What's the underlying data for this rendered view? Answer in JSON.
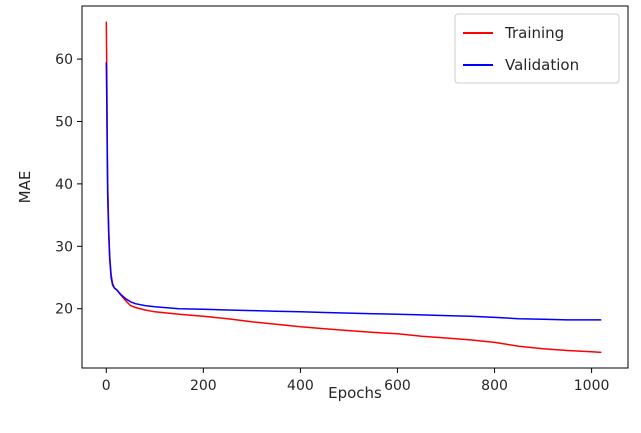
{
  "chart_data": {
    "type": "line",
    "title": "",
    "xlabel": "Epochs",
    "ylabel": "MAE",
    "xlim": [
      -50,
      1075
    ],
    "ylim": [
      10.5,
      68.5
    ],
    "xticks": [
      0,
      200,
      400,
      600,
      800,
      1000
    ],
    "yticks": [
      20,
      30,
      40,
      50,
      60
    ],
    "grid": false,
    "legend_position": "top-right",
    "series": [
      {
        "name": "Training",
        "color": "#ff0000",
        "x": [
          0,
          1,
          2,
          3,
          5,
          7,
          10,
          13,
          17,
          22,
          30,
          40,
          50,
          60,
          80,
          100,
          150,
          200,
          250,
          300,
          350,
          400,
          450,
          500,
          550,
          600,
          650,
          700,
          750,
          800,
          850,
          900,
          950,
          1000,
          1020
        ],
        "y": [
          66.0,
          58.0,
          48.0,
          40.0,
          33.0,
          28.5,
          25.5,
          24.0,
          23.3,
          23.0,
          22.2,
          21.3,
          20.5,
          20.2,
          19.8,
          19.5,
          19.1,
          18.8,
          18.4,
          17.9,
          17.5,
          17.1,
          16.8,
          16.5,
          16.2,
          16.0,
          15.6,
          15.3,
          15.0,
          14.6,
          14.0,
          13.6,
          13.3,
          13.1,
          13.0
        ]
      },
      {
        "name": "Validation",
        "color": "#0000ff",
        "x": [
          0,
          1,
          2,
          3,
          5,
          7,
          10,
          13,
          17,
          22,
          30,
          40,
          50,
          60,
          80,
          100,
          150,
          200,
          250,
          300,
          350,
          400,
          450,
          500,
          550,
          600,
          650,
          700,
          750,
          800,
          850,
          900,
          950,
          1000,
          1020
        ],
        "y": [
          59.5,
          53.0,
          45.0,
          38.0,
          32.0,
          28.0,
          25.0,
          23.8,
          23.3,
          23.0,
          22.3,
          21.6,
          21.1,
          20.8,
          20.5,
          20.3,
          20.0,
          19.9,
          19.8,
          19.7,
          19.6,
          19.5,
          19.4,
          19.3,
          19.2,
          19.1,
          19.0,
          18.9,
          18.8,
          18.6,
          18.4,
          18.3,
          18.2,
          18.2,
          18.2
        ]
      }
    ]
  }
}
